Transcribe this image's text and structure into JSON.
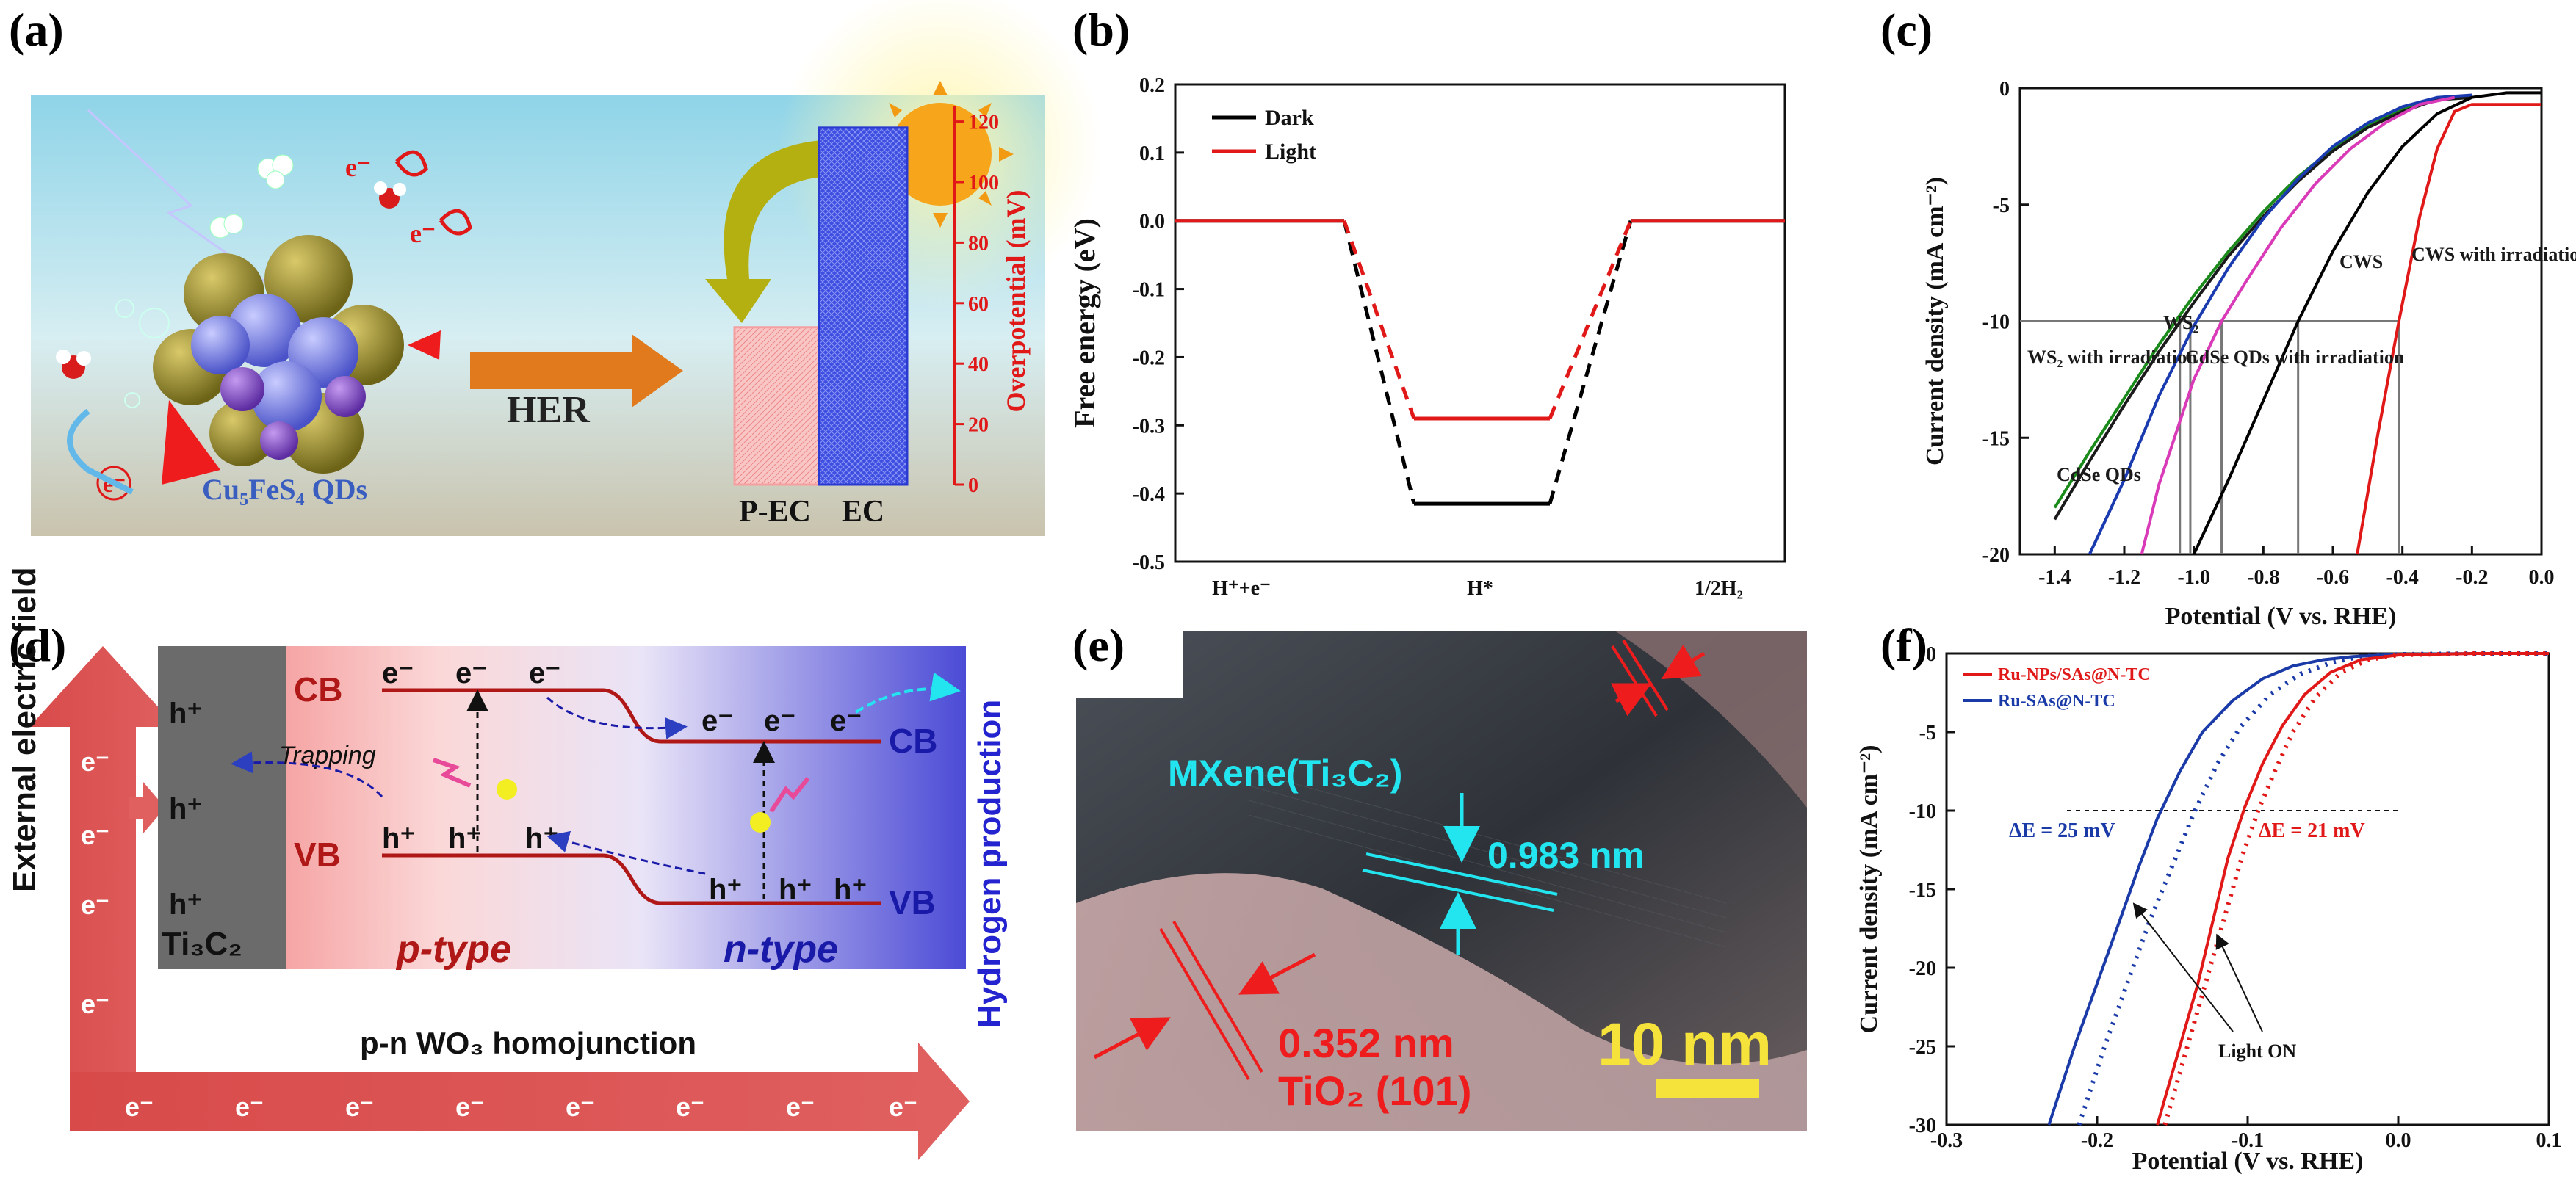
{
  "panel_letters": [
    "(a)",
    "(b)",
    "(c)",
    "(d)",
    "(e)",
    "(f)"
  ],
  "panel_a": {
    "her_label": "HER",
    "qds_label": "Cu₅FeS₄ QDs",
    "electron": "e⁻",
    "axis_label": "Overpotential (mV)",
    "ticks": [
      "0",
      "20",
      "40",
      "60",
      "80",
      "100",
      "120"
    ],
    "bar_labels": [
      "P-EC",
      "EC"
    ],
    "overpotentials_mV": [
      52,
      118
    ],
    "colors": {
      "axis": "#e01818",
      "pec": "#f5a0a0",
      "ec": "#2a3ad0",
      "her_arrow": "#e07a1c"
    }
  },
  "panel_d": {
    "field_label": "External electric field",
    "h2_label": "Hydrogen production",
    "ti3c2": "Ti₃C₂",
    "homojunction": "p-n WO₃ homojunction",
    "cb": "CB",
    "vb": "VB",
    "ptype": "p-type",
    "ntype": "n-type",
    "trapping": "Trapping",
    "h_plus": "h⁺",
    "e_minus": "e⁻"
  },
  "panel_e": {
    "mxene_label": "MXene(Ti₃C₂)",
    "d_mxene": "0.983 nm",
    "d_tio2": "0.352 nm",
    "tio2_label": "TiO₂ (101)",
    "scale": "10 nm"
  },
  "chart_data": [
    {
      "panel": "b",
      "type": "line",
      "xlabel": "",
      "ylabel": "Free energy (eV)",
      "x_ticklabels": [
        "H⁺+e⁻",
        "H*",
        "1/2H₂"
      ],
      "ylim": [
        -0.5,
        0.2
      ],
      "yticks": [
        "0.2",
        "0.1",
        "0.0",
        "-0.1",
        "-0.2",
        "-0.3",
        "-0.4",
        "-0.5"
      ],
      "legend": [
        "Dark",
        "Light"
      ],
      "series": [
        {
          "name": "Dark",
          "color": "#000000",
          "levels": [
            0.0,
            -0.415,
            0.0
          ]
        },
        {
          "name": "Light",
          "color": "#e01818",
          "levels": [
            0.0,
            -0.29,
            0.0
          ]
        }
      ]
    },
    {
      "panel": "c",
      "type": "line",
      "xlabel": "Potential (V vs. RHE)",
      "ylabel": "Current density (mA cm⁻²)",
      "xlim": [
        -1.5,
        0.0
      ],
      "ylim": [
        -20,
        0
      ],
      "xticks": [
        "-1.4",
        "-1.2",
        "-1.0",
        "-0.8",
        "-0.6",
        "-0.4",
        "-0.2",
        "0.0"
      ],
      "yticks": [
        "0",
        "-5",
        "-10",
        "-15",
        "-20"
      ],
      "reference_current": -10,
      "annotations": [
        "WS₂",
        "WS₂ with irradiation",
        "CdSe QDs",
        "CdSe QDs with irradiation",
        "CWS",
        "CWS with irradiation"
      ],
      "series": [
        {
          "name": "WS₂ with irradiation",
          "color": "#1a8a1a",
          "x": [
            -1.4,
            -1.3,
            -1.2,
            -1.1,
            -1.0,
            -0.9,
            -0.8,
            -0.7,
            -0.6,
            -0.5,
            -0.4,
            -0.3,
            -0.2
          ],
          "y": [
            -18.0,
            -15.6,
            -13.3,
            -11.0,
            -8.9,
            -7.0,
            -5.3,
            -3.8,
            -2.6,
            -1.6,
            -0.9,
            -0.5,
            -0.4
          ]
        },
        {
          "name": "WS₂",
          "color": "#1a1a1a",
          "x": [
            -1.4,
            -1.3,
            -1.2,
            -1.1,
            -1.0,
            -0.9,
            -0.8,
            -0.7,
            -0.6,
            -0.5,
            -0.4,
            -0.3,
            -0.2
          ],
          "y": [
            -18.5,
            -16.0,
            -13.6,
            -11.3,
            -9.2,
            -7.2,
            -5.5,
            -4.0,
            -2.7,
            -1.7,
            -1.0,
            -0.5,
            -0.4
          ]
        },
        {
          "name": "CdSe QDs",
          "color": "#1a3ab0",
          "x": [
            -1.3,
            -1.2,
            -1.1,
            -1.0,
            -0.9,
            -0.8,
            -0.7,
            -0.6,
            -0.5,
            -0.4,
            -0.3,
            -0.2
          ],
          "y": [
            -20.0,
            -16.8,
            -13.2,
            -10.2,
            -7.7,
            -5.6,
            -3.9,
            -2.5,
            -1.5,
            -0.8,
            -0.4,
            -0.3
          ]
        },
        {
          "name": "CdSe QDs with irradiation",
          "color": "#d83ab8",
          "x": [
            -1.15,
            -1.1,
            -1.0,
            -0.92,
            -0.85,
            -0.75,
            -0.65,
            -0.55,
            -0.45,
            -0.35,
            -0.25
          ],
          "y": [
            -20.0,
            -17.0,
            -12.5,
            -10.0,
            -8.3,
            -6.0,
            -4.1,
            -2.6,
            -1.5,
            -0.7,
            -0.4
          ]
        },
        {
          "name": "CWS",
          "color": "#000000",
          "x": [
            -1.0,
            -0.9,
            -0.8,
            -0.7,
            -0.6,
            -0.5,
            -0.4,
            -0.3,
            -0.2,
            -0.1,
            0.0
          ],
          "y": [
            -20.0,
            -16.8,
            -13.4,
            -10.0,
            -7.0,
            -4.5,
            -2.5,
            -1.1,
            -0.4,
            -0.2,
            -0.2
          ]
        },
        {
          "name": "CWS with irradiation",
          "color": "#e01818",
          "x": [
            -0.53,
            -0.47,
            -0.41,
            -0.35,
            -0.3,
            -0.25,
            -0.2,
            -0.1,
            0.0
          ],
          "y": [
            -20.0,
            -14.8,
            -10.0,
            -5.5,
            -2.6,
            -1.0,
            -0.7,
            -0.7,
            -0.7
          ]
        }
      ]
    },
    {
      "panel": "f",
      "type": "line",
      "xlabel": "Potential (V vs. RHE)",
      "ylabel": "Current density (mA cm⁻²)",
      "xlim": [
        -0.3,
        0.1
      ],
      "ylim": [
        -30,
        0
      ],
      "xticks": [
        "-0.3",
        "-0.2",
        "-0.1",
        "0.0",
        "0.1"
      ],
      "yticks": [
        "0",
        "-5",
        "-10",
        "-15",
        "-20",
        "-25",
        "-30"
      ],
      "reference_current": -10,
      "legend": [
        "Ru-NPs/SAs@N-TC",
        "Ru-SAs@N-TC"
      ],
      "delta_labels": [
        "ΔE = 25 mV",
        "ΔE = 21 mV"
      ],
      "note": "Light ON",
      "series": [
        {
          "name": "Ru-SAs@N-TC",
          "color": "#1a3aa8",
          "dashed": false,
          "x": [
            -0.232,
            -0.215,
            -0.2,
            -0.185,
            -0.172,
            -0.16,
            -0.145,
            -0.13,
            -0.11,
            -0.09,
            -0.07,
            -0.05,
            -0.03,
            0.0,
            0.05,
            0.1
          ],
          "y": [
            -30.0,
            -25.0,
            -21.0,
            -17.0,
            -13.5,
            -10.5,
            -7.5,
            -5.0,
            -3.0,
            -1.6,
            -0.8,
            -0.4,
            -0.2,
            -0.05,
            0.0,
            0.0
          ]
        },
        {
          "name": "Ru-SAs@N-TC (light)",
          "color": "#1a3aa8",
          "dashed": true,
          "x": [
            -0.212,
            -0.195,
            -0.18,
            -0.165,
            -0.15,
            -0.135,
            -0.12,
            -0.105,
            -0.085,
            -0.065,
            -0.045,
            -0.025,
            0.0,
            0.05,
            0.1
          ],
          "y": [
            -30.0,
            -25.0,
            -21.0,
            -17.0,
            -13.5,
            -10.0,
            -7.0,
            -4.7,
            -2.6,
            -1.3,
            -0.6,
            -0.2,
            -0.05,
            0.0,
            0.0
          ]
        },
        {
          "name": "Ru-NPs/SAs@N-TC",
          "color": "#e01818",
          "dashed": false,
          "x": [
            -0.16,
            -0.145,
            -0.133,
            -0.123,
            -0.113,
            -0.102,
            -0.09,
            -0.077,
            -0.062,
            -0.045,
            -0.025,
            0.0,
            0.05,
            0.1
          ],
          "y": [
            -30.0,
            -25.0,
            -21.0,
            -17.0,
            -13.0,
            -9.8,
            -7.0,
            -4.6,
            -2.6,
            -1.2,
            -0.4,
            -0.1,
            0.0,
            0.0
          ]
        },
        {
          "name": "Ru-NPs/SAs@N-TC (light)",
          "color": "#e01818",
          "dashed": true,
          "x": [
            -0.155,
            -0.14,
            -0.128,
            -0.116,
            -0.104,
            -0.093,
            -0.082,
            -0.07,
            -0.055,
            -0.038,
            -0.02,
            0.0,
            0.05,
            0.1
          ],
          "y": [
            -30.0,
            -25.0,
            -21.0,
            -17.0,
            -13.0,
            -10.0,
            -7.5,
            -5.0,
            -2.8,
            -1.2,
            -0.4,
            -0.1,
            0.0,
            0.0
          ]
        }
      ]
    }
  ]
}
